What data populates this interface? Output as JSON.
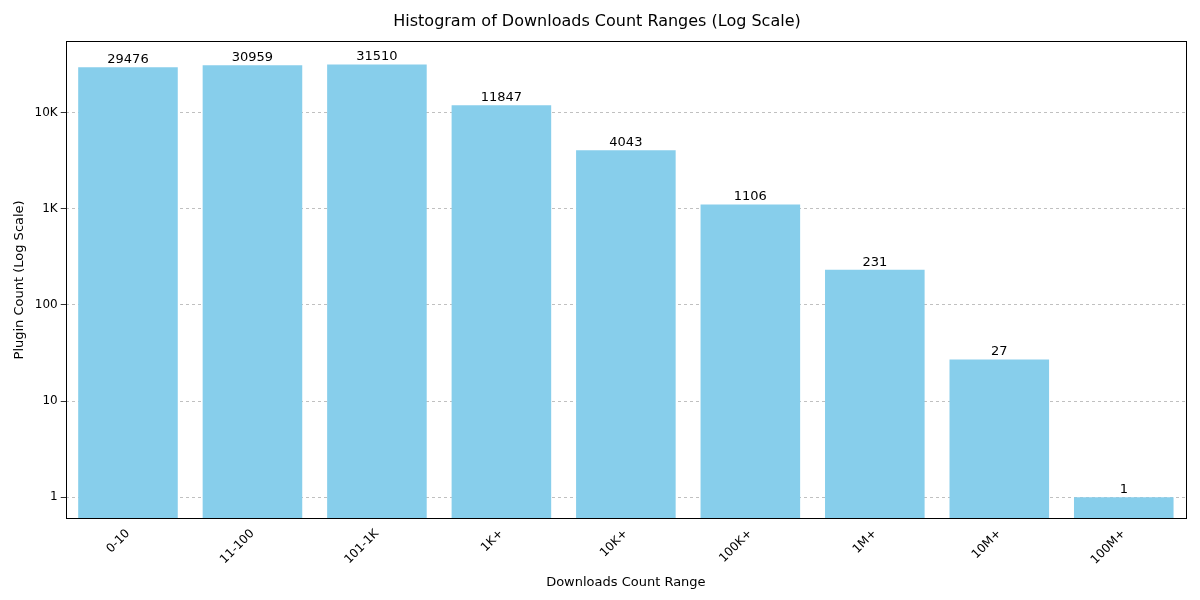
{
  "chart_data": {
    "type": "bar",
    "title": "Histogram of Downloads Count Ranges (Log Scale)",
    "x_label": "Downloads Count Range",
    "y_label": "Plugin Count (Log Scale)",
    "categories": [
      "0-10",
      "11-100",
      "101-1K",
      "1K+",
      "10K+",
      "100K+",
      "1M+",
      "10M+",
      "100M+"
    ],
    "values": [
      29476,
      30959,
      31510,
      11847,
      4043,
      1106,
      231,
      27,
      1
    ],
    "color": "#87ceeb",
    "log": "y",
    "ylim": [
      0.6,
      55000
    ],
    "yticks": [
      1,
      10,
      100,
      {
        "value": 1000,
        "label": "1K"
      },
      {
        "value": 10000,
        "label": "10K"
      }
    ],
    "grid": true,
    "data_labels": true
  }
}
